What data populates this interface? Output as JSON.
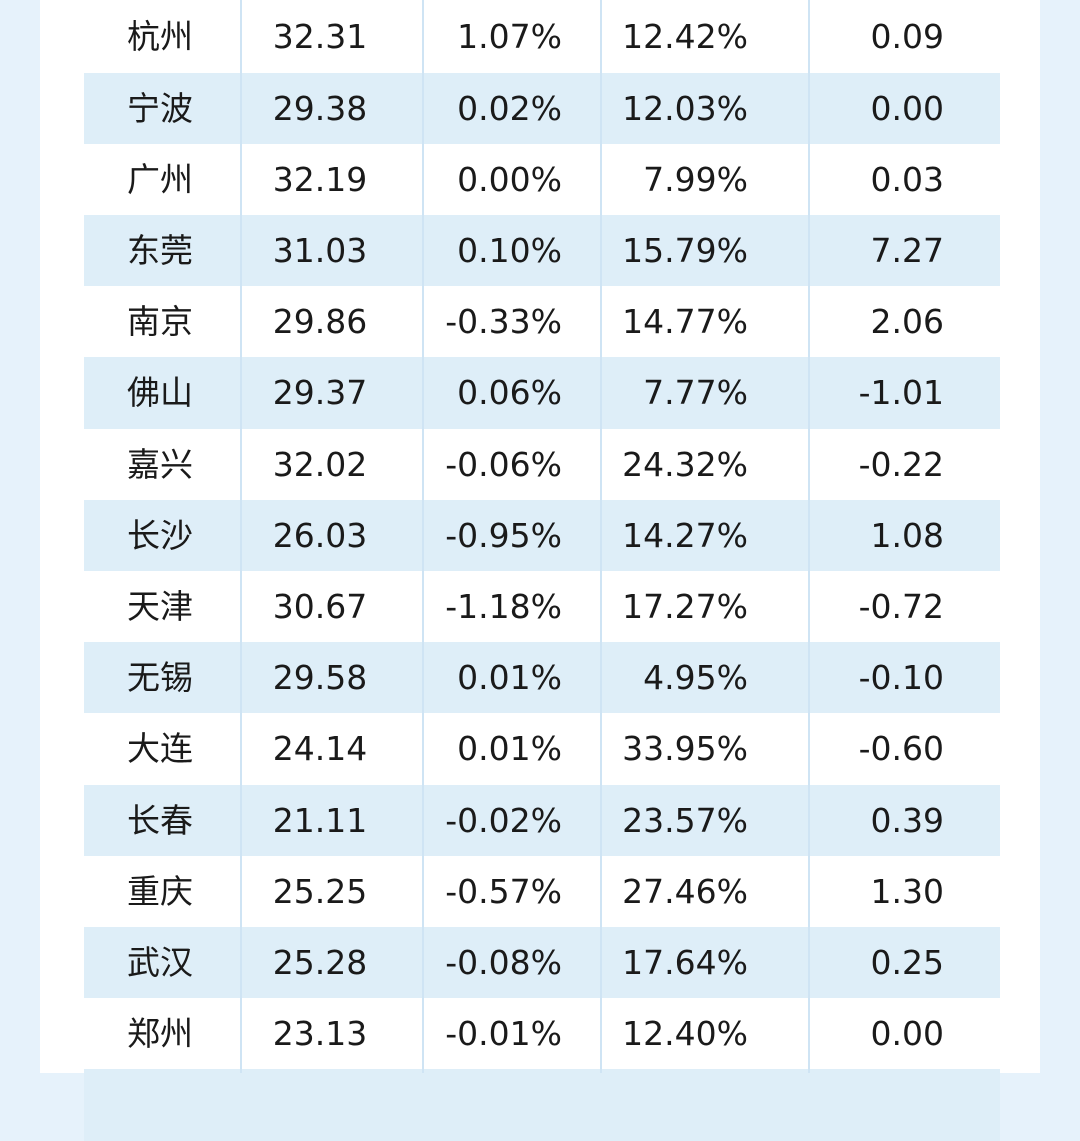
{
  "table": {
    "rows": [
      [
        "杭州",
        "32.31",
        "1.07%",
        "12.42%",
        "0.09"
      ],
      [
        "宁波",
        "29.38",
        "0.02%",
        "12.03%",
        "0.00"
      ],
      [
        "广州",
        "32.19",
        "0.00%",
        "7.99%",
        "0.03"
      ],
      [
        "东莞",
        "31.03",
        "0.10%",
        "15.79%",
        "7.27"
      ],
      [
        "南京",
        "29.86",
        "-0.33%",
        "14.77%",
        "2.06"
      ],
      [
        "佛山",
        "29.37",
        "0.06%",
        "7.77%",
        "-1.01"
      ],
      [
        "嘉兴",
        "32.02",
        "-0.06%",
        "24.32%",
        "-0.22"
      ],
      [
        "长沙",
        "26.03",
        "-0.95%",
        "14.27%",
        "1.08"
      ],
      [
        "天津",
        "30.67",
        "-1.18%",
        "17.27%",
        "-0.72"
      ],
      [
        "无锡",
        "29.58",
        "0.01%",
        "4.95%",
        "-0.10"
      ],
      [
        "大连",
        "24.14",
        "0.01%",
        "33.95%",
        "-0.60"
      ],
      [
        "长春",
        "21.11",
        "-0.02%",
        "23.57%",
        "0.39"
      ],
      [
        "重庆",
        "25.25",
        "-0.57%",
        "27.46%",
        "1.30"
      ],
      [
        "武汉",
        "25.28",
        "-0.08%",
        "17.64%",
        "0.25"
      ],
      [
        "郑州",
        "23.13",
        "-0.01%",
        "12.40%",
        "0.00"
      ]
    ]
  }
}
